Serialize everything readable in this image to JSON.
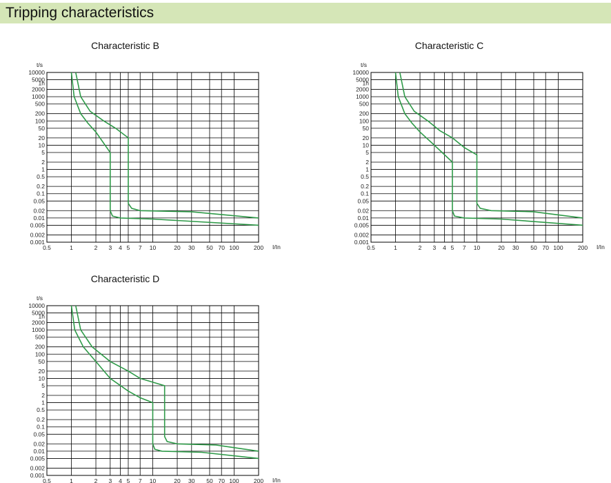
{
  "header": {
    "title": "Tripping characteristics"
  },
  "colors": {
    "header_bg": "#d5e6b7",
    "curve": "#2e9a48",
    "grid": "#000000"
  },
  "chart_data": [
    {
      "type": "line",
      "title": "Characteristic B",
      "ylabel": "t/s",
      "xlabel": "I/In",
      "x_scale": "log",
      "y_scale": "log",
      "xlim": [
        0.5,
        200
      ],
      "ylim": [
        0.001,
        10000
      ],
      "x_ticks": [
        "0.5",
        "1",
        "2",
        "3",
        "4",
        "5",
        "7",
        "10",
        "20",
        "30",
        "50",
        "70",
        "100",
        "200"
      ],
      "y_ticks": [
        "10000",
        "5000",
        "1h",
        "2000",
        "1000",
        "500",
        "200",
        "100",
        "50",
        "20",
        "10",
        "5",
        "2",
        "1",
        "0.5",
        "0.2",
        "0.1",
        "0.05",
        "0.02",
        "0.01",
        "0.005",
        "0.002",
        "0.001"
      ],
      "grid": true,
      "series": [
        {
          "values": [
            [
              1.0,
              10000
            ],
            [
              1.08,
              1000
            ],
            [
              1.3,
              200
            ],
            [
              1.6,
              80
            ],
            [
              2,
              35
            ],
            [
              3,
              5
            ],
            [
              3,
              0.02
            ],
            [
              3.2,
              0.012
            ],
            [
              4,
              0.01
            ],
            [
              10,
              0.009
            ],
            [
              200,
              0.005
            ]
          ]
        },
        {
          "values": [
            [
              1.13,
              10000
            ],
            [
              1.3,
              1000
            ],
            [
              1.7,
              250
            ],
            [
              2.5,
              100
            ],
            [
              3.5,
              50
            ],
            [
              5,
              20
            ],
            [
              5,
              0.04
            ],
            [
              5.5,
              0.025
            ],
            [
              7,
              0.02
            ],
            [
              30,
              0.018
            ],
            [
              200,
              0.01
            ]
          ]
        }
      ]
    },
    {
      "type": "line",
      "title": "Characteristic C",
      "ylabel": "t/s",
      "xlabel": "I/In",
      "x_scale": "log",
      "y_scale": "log",
      "xlim": [
        0.5,
        200
      ],
      "ylim": [
        0.001,
        10000
      ],
      "x_ticks": [
        "0.5",
        "1",
        "2",
        "3",
        "4",
        "5",
        "7",
        "10",
        "20",
        "30",
        "50",
        "70",
        "100",
        "200"
      ],
      "y_ticks": [
        "10000",
        "5000",
        "1h",
        "2000",
        "1000",
        "500",
        "200",
        "100",
        "50",
        "20",
        "10",
        "5",
        "2",
        "1",
        "0.5",
        "0.2",
        "0.1",
        "0.05",
        "0.02",
        "0.01",
        "0.005",
        "0.002",
        "0.001"
      ],
      "grid": true,
      "series": [
        {
          "values": [
            [
              1.0,
              10000
            ],
            [
              1.08,
              1000
            ],
            [
              1.3,
              200
            ],
            [
              1.6,
              80
            ],
            [
              2,
              35
            ],
            [
              3,
              10
            ],
            [
              5,
              2
            ],
            [
              5,
              0.02
            ],
            [
              5.3,
              0.012
            ],
            [
              7,
              0.01
            ],
            [
              20,
              0.009
            ],
            [
              200,
              0.005
            ]
          ]
        },
        {
          "values": [
            [
              1.13,
              10000
            ],
            [
              1.3,
              1000
            ],
            [
              1.7,
              250
            ],
            [
              2.5,
              100
            ],
            [
              3.5,
              40
            ],
            [
              5,
              20
            ],
            [
              7,
              8
            ],
            [
              10,
              4
            ],
            [
              10,
              0.04
            ],
            [
              11,
              0.025
            ],
            [
              15,
              0.02
            ],
            [
              50,
              0.018
            ],
            [
              200,
              0.01
            ]
          ]
        }
      ]
    },
    {
      "type": "line",
      "title": "Characteristic D",
      "ylabel": "t/s",
      "xlabel": "I/In",
      "x_scale": "log",
      "y_scale": "log",
      "xlim": [
        0.5,
        200
      ],
      "ylim": [
        0.001,
        10000
      ],
      "x_ticks": [
        "0.5",
        "1",
        "2",
        "3",
        "4",
        "5",
        "7",
        "10",
        "20",
        "30",
        "50",
        "70",
        "100",
        "200"
      ],
      "y_ticks": [
        "10000",
        "5000",
        "1h",
        "2000",
        "1000",
        "500",
        "200",
        "100",
        "50",
        "20",
        "10",
        "5",
        "2",
        "1",
        "0.5",
        "0.2",
        "0.1",
        "0.05",
        "0.02",
        "0.01",
        "0.005",
        "0.002",
        "0.001"
      ],
      "grid": true,
      "series": [
        {
          "values": [
            [
              1.0,
              10000
            ],
            [
              1.1,
              1000
            ],
            [
              1.4,
              200
            ],
            [
              2,
              50
            ],
            [
              3,
              10
            ],
            [
              5,
              3
            ],
            [
              7,
              1.6
            ],
            [
              10,
              1
            ],
            [
              10,
              0.02
            ],
            [
              10.6,
              0.012
            ],
            [
              13,
              0.01
            ],
            [
              40,
              0.009
            ],
            [
              200,
              0.005
            ]
          ]
        },
        {
          "values": [
            [
              1.13,
              10000
            ],
            [
              1.3,
              1000
            ],
            [
              1.8,
              200
            ],
            [
              3,
              50
            ],
            [
              5,
              20
            ],
            [
              7,
              10
            ],
            [
              10,
              7
            ],
            [
              14,
              5
            ],
            [
              14,
              0.04
            ],
            [
              15,
              0.025
            ],
            [
              20,
              0.02
            ],
            [
              60,
              0.018
            ],
            [
              200,
              0.01
            ]
          ]
        }
      ]
    }
  ]
}
